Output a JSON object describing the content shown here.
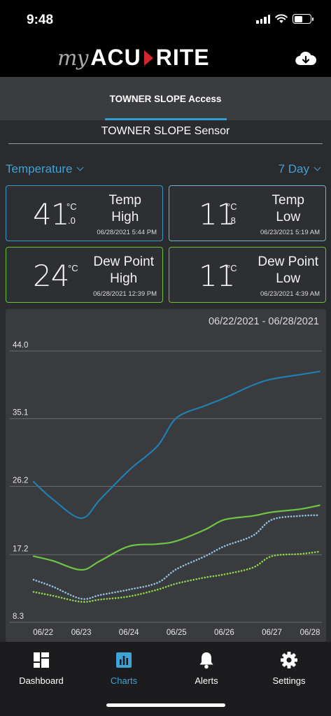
{
  "status": {
    "time": "9:48"
  },
  "header": {
    "logo_my": "my",
    "logo_acu": "ACU",
    "logo_rite": "RITE",
    "download_icon": "cloud-download-icon"
  },
  "access": {
    "title": "TOWNER SLOPE Access"
  },
  "sensor": {
    "name": "TOWNER SLOPE Sensor"
  },
  "selectors": {
    "measure": "Temperature",
    "range": "7 Day"
  },
  "cards": {
    "temp_high": {
      "value": "41",
      "unit": "°C",
      "decimal": ".0",
      "label1": "Temp",
      "label2": "High",
      "time": "06/28/2021 5:44 PM"
    },
    "temp_low": {
      "value": "11",
      "unit": "°C",
      "decimal": ".8",
      "label1": "Temp",
      "label2": "Low",
      "time": "06/23/2021 5:19 AM"
    },
    "dew_high": {
      "value": "24",
      "unit": "°C",
      "label1": "Dew Point",
      "label2": "High",
      "time": "06/28/2021 12:39 PM"
    },
    "dew_low": {
      "value": "11",
      "unit": "°C",
      "label1": "Dew Point",
      "label2": "Low",
      "time": "06/23/2021 4:39 AM"
    }
  },
  "chart_data": {
    "type": "line",
    "date_range": "06/22/2021 - 06/28/2021",
    "ylim": [
      8.3,
      44.0
    ],
    "yticks": [
      "44.0",
      "35.1",
      "26.2",
      "17.2",
      "8.3"
    ],
    "ytick_values": [
      44.0,
      35.1,
      26.2,
      17.2,
      8.3
    ],
    "xticks": [
      "06/22",
      "06/23",
      "06/24",
      "06/25",
      "06/26",
      "06/27",
      "06/28"
    ],
    "xtick_values": [
      0.2,
      1.0,
      2.0,
      3.0,
      4.0,
      5.0,
      5.8
    ],
    "grid": true,
    "series": [
      {
        "style": "solid",
        "color": "#1f7fb0",
        "x": [
          0.0,
          0.4,
          1.0,
          1.4,
          2.0,
          2.6,
          3.0,
          3.6,
          4.0,
          4.6,
          5.0,
          5.6,
          6.0
        ],
        "y": [
          26.8,
          24.5,
          22.0,
          24.5,
          28.3,
          31.5,
          35.2,
          36.8,
          37.8,
          39.5,
          40.3,
          40.9,
          41.3
        ]
      },
      {
        "style": "solid",
        "color": "#6cc644",
        "x": [
          0.0,
          0.4,
          1.0,
          1.4,
          2.0,
          2.6,
          3.0,
          3.6,
          4.0,
          4.6,
          5.0,
          5.6,
          6.0
        ],
        "y": [
          17.0,
          16.4,
          15.2,
          16.4,
          18.3,
          18.6,
          19.0,
          20.5,
          21.8,
          22.3,
          22.8,
          23.2,
          23.7
        ]
      },
      {
        "style": "dotted",
        "color": "#8ec3e6",
        "x": [
          0.0,
          0.4,
          1.0,
          1.4,
          2.0,
          2.6,
          3.0,
          3.6,
          4.0,
          4.6,
          5.0,
          5.6,
          6.0
        ],
        "y": [
          13.9,
          13.0,
          11.4,
          11.9,
          12.6,
          13.5,
          15.3,
          17.0,
          18.3,
          19.7,
          21.8,
          22.3,
          22.4
        ]
      },
      {
        "style": "dotted",
        "color": "#8fd64a",
        "x": [
          0.0,
          0.4,
          1.0,
          1.4,
          2.0,
          2.6,
          3.0,
          3.6,
          4.0,
          4.6,
          5.0,
          5.6,
          6.0
        ],
        "y": [
          12.3,
          11.8,
          11.0,
          11.3,
          11.7,
          12.6,
          13.4,
          14.2,
          14.6,
          15.5,
          17.0,
          17.3,
          17.6
        ]
      }
    ]
  },
  "tabs": [
    {
      "label": "Dashboard",
      "icon": "dashboard-icon"
    },
    {
      "label": "Charts",
      "icon": "charts-icon"
    },
    {
      "label": "Alerts",
      "icon": "bell-icon"
    },
    {
      "label": "Settings",
      "icon": "gear-icon"
    }
  ],
  "colors": {
    "accent": "#3fa3d6",
    "green": "#6bbf3b",
    "blue_line": "#1f7fb0"
  }
}
